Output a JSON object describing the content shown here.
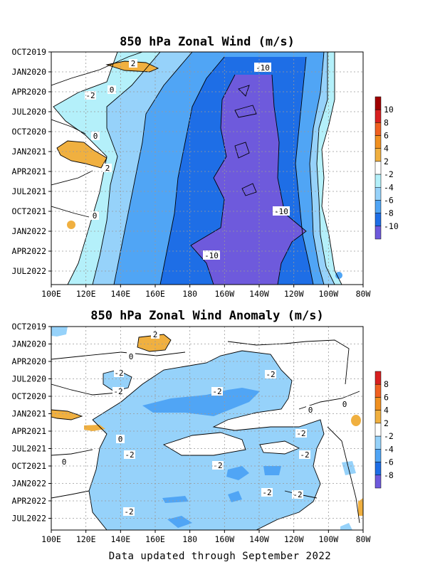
{
  "charts": [
    {
      "title": "850 hPa Zonal Wind (m/s)",
      "y_ticks": [
        "OCT2019",
        "JAN2020",
        "APR2020",
        "JUL2020",
        "OCT2020",
        "JAN2021",
        "APR2021",
        "JUL2021",
        "OCT2021",
        "JAN2022",
        "APR2022",
        "JUL2022"
      ],
      "x_ticks": [
        "100E",
        "120E",
        "140E",
        "160E",
        "180",
        "160W",
        "140W",
        "120W",
        "100W",
        "80W"
      ],
      "colorbar_labels": [
        "10",
        "8",
        "6",
        "4",
        "2",
        "-2",
        "-4",
        "-6",
        "-8",
        "-10"
      ],
      "colorbar_colors": [
        "#a00000",
        "#d82020",
        "#f06020",
        "#f09020",
        "#f0b040",
        "#ffffff",
        "#b4f0fa",
        "#96d2fa",
        "#50a5f5",
        "#1e6ee6",
        "#6e5adc"
      ],
      "contour_labels": [
        "-10",
        "-10",
        "-10",
        "2",
        "-2",
        "0",
        "0",
        "2",
        "0"
      ]
    },
    {
      "title": "850 hPa Zonal Wind Anomaly (m/s)",
      "y_ticks": [
        "OCT2019",
        "JAN2020",
        "APR2020",
        "JUL2020",
        "OCT2020",
        "JAN2021",
        "APR2021",
        "JUL2021",
        "OCT2021",
        "JAN2022",
        "APR2022",
        "JUL2022"
      ],
      "x_ticks": [
        "100E",
        "120E",
        "140E",
        "160E",
        "180",
        "160W",
        "140W",
        "120W",
        "100W",
        "80W"
      ],
      "colorbar_labels": [
        "8",
        "6",
        "4",
        "2",
        "-2",
        "-4",
        "-6",
        "-8"
      ],
      "colorbar_colors": [
        "#d82020",
        "#f06020",
        "#f09020",
        "#f0b040",
        "#ffffff",
        "#96d2fa",
        "#50a5f5",
        "#1e6ee6",
        "#6e5adc"
      ],
      "contour_labels": [
        "2",
        "0",
        "-2",
        "-2",
        "-2",
        "-2",
        "0",
        "0",
        "-2",
        "0",
        "-2",
        "-2",
        "-2",
        "-2",
        "-2",
        "-2",
        "0"
      ]
    }
  ],
  "footer": "Data updated through September 2022",
  "chart_data": [
    {
      "type": "heatmap",
      "title": "850 hPa Zonal Wind (m/s)",
      "x_axis": {
        "ticks": [
          "100E",
          "120E",
          "140E",
          "160E",
          "180",
          "160W",
          "140W",
          "120W",
          "100W",
          "80W"
        ],
        "range": [
          "100E",
          "80W"
        ]
      },
      "y_axis": {
        "ticks": [
          "OCT2019",
          "JAN2020",
          "APR2020",
          "JUL2020",
          "OCT2020",
          "JAN2021",
          "APR2021",
          "JUL2021",
          "OCT2021",
          "JAN2022",
          "APR2022",
          "JUL2022"
        ],
        "range": [
          "OCT2019",
          "SEP2022"
        ]
      },
      "color_levels": [
        -10,
        -8,
        -6,
        -4,
        -2,
        2,
        4,
        6,
        8,
        10
      ],
      "grid": true,
      "legend": "colorbar right"
    },
    {
      "type": "heatmap",
      "title": "850 hPa Zonal Wind Anomaly (m/s)",
      "x_axis": {
        "ticks": [
          "100E",
          "120E",
          "140E",
          "160E",
          "180",
          "160W",
          "140W",
          "120W",
          "100W",
          "80W"
        ],
        "range": [
          "100E",
          "80W"
        ]
      },
      "y_axis": {
        "ticks": [
          "OCT2019",
          "JAN2020",
          "APR2020",
          "JUL2020",
          "OCT2020",
          "JAN2021",
          "APR2021",
          "JUL2021",
          "OCT2021",
          "JAN2022",
          "APR2022",
          "JUL2022"
        ],
        "range": [
          "OCT2019",
          "SEP2022"
        ]
      },
      "color_levels": [
        -8,
        -6,
        -4,
        -2,
        2,
        4,
        6,
        8
      ],
      "grid": true,
      "legend": "colorbar right"
    }
  ]
}
